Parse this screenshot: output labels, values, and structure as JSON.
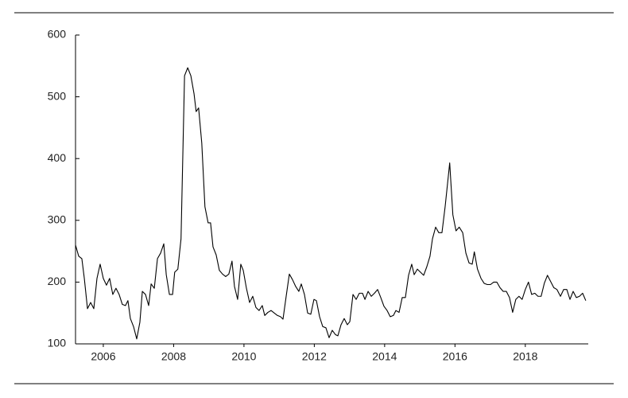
{
  "chart_data": {
    "type": "line",
    "x": [
      2005.21,
      2005.3,
      2005.39,
      2005.46,
      2005.55,
      2005.64,
      2005.73,
      2005.82,
      2005.91,
      2006.0,
      2006.09,
      2006.18,
      2006.27,
      2006.36,
      2006.45,
      2006.54,
      2006.63,
      2006.7,
      2006.77,
      2006.86,
      2006.95,
      2007.04,
      2007.11,
      2007.2,
      2007.29,
      2007.36,
      2007.45,
      2007.54,
      2007.63,
      2007.72,
      2007.79,
      2007.88,
      2007.97,
      2008.03,
      2008.12,
      2008.21,
      2008.31,
      2008.4,
      2008.49,
      2008.58,
      2008.64,
      2008.71,
      2008.8,
      2008.89,
      2008.98,
      2009.05,
      2009.12,
      2009.21,
      2009.3,
      2009.39,
      2009.48,
      2009.57,
      2009.66,
      2009.73,
      2009.82,
      2009.91,
      2009.98,
      2010.07,
      2010.16,
      2010.25,
      2010.34,
      2010.43,
      2010.52,
      2010.59,
      2010.68,
      2010.77,
      2010.86,
      2010.95,
      2011.04,
      2011.11,
      2011.2,
      2011.29,
      2011.38,
      2011.47,
      2011.56,
      2011.63,
      2011.72,
      2011.81,
      2011.9,
      2011.99,
      2012.06,
      2012.15,
      2012.24,
      2012.33,
      2012.42,
      2012.51,
      2012.6,
      2012.67,
      2012.76,
      2012.85,
      2012.94,
      2013.01,
      2013.1,
      2013.19,
      2013.28,
      2013.37,
      2013.44,
      2013.53,
      2013.62,
      2013.71,
      2013.8,
      2013.89,
      2013.98,
      2014.07,
      2014.16,
      2014.25,
      2014.32,
      2014.41,
      2014.5,
      2014.59,
      2014.68,
      2014.77,
      2014.84,
      2014.93,
      2015.02,
      2015.11,
      2015.2,
      2015.29,
      2015.36,
      2015.45,
      2015.54,
      2015.63,
      2015.72,
      2015.81,
      2015.85,
      2015.94,
      2016.03,
      2016.12,
      2016.22,
      2016.31,
      2016.4,
      2016.49,
      2016.55,
      2016.64,
      2016.74,
      2016.83,
      2016.92,
      2017.01,
      2017.1,
      2017.19,
      2017.28,
      2017.37,
      2017.46,
      2017.55,
      2017.64,
      2017.73,
      2017.82,
      2017.91,
      2018.0,
      2018.09,
      2018.18,
      2018.27,
      2018.36,
      2018.45,
      2018.54,
      2018.63,
      2018.72,
      2018.81,
      2018.9,
      2019.0,
      2019.09,
      2019.18,
      2019.27,
      2019.36,
      2019.45,
      2019.54,
      2019.63,
      2019.72
    ],
    "series": [
      {
        "color": "#000000",
        "values": [
          260,
          242,
          238,
          206,
          157,
          167,
          157,
          206,
          229,
          206,
          195,
          206,
          180,
          190,
          180,
          164,
          162,
          170,
          141,
          128,
          108,
          135,
          185,
          180,
          162,
          197,
          190,
          238,
          247,
          262,
          212,
          180,
          180,
          216,
          221,
          270,
          534,
          547,
          534,
          505,
          476,
          482,
          425,
          322,
          296,
          296,
          257,
          244,
          219,
          213,
          209,
          213,
          234,
          193,
          172,
          229,
          219,
          190,
          167,
          177,
          159,
          154,
          162,
          146,
          151,
          154,
          150,
          146,
          144,
          140,
          177,
          213,
          204,
          193,
          185,
          197,
          180,
          150,
          148,
          172,
          170,
          144,
          128,
          126,
          110,
          122,
          115,
          113,
          131,
          141,
          131,
          136,
          180,
          172,
          182,
          182,
          172,
          185,
          177,
          182,
          188,
          175,
          161,
          154,
          144,
          146,
          154,
          151,
          175,
          175,
          211,
          229,
          212,
          221,
          216,
          211,
          225,
          242,
          270,
          289,
          280,
          280,
          322,
          371,
          393,
          309,
          283,
          289,
          280,
          247,
          231,
          229,
          249,
          221,
          206,
          198,
          196,
          196,
          200,
          200,
          191,
          185,
          185,
          175,
          151,
          172,
          177,
          172,
          188,
          200,
          180,
          182,
          177,
          177,
          198,
          211,
          201,
          191,
          188,
          177,
          188,
          188,
          172,
          185,
          175,
          177,
          182,
          170
        ]
      }
    ],
    "xlim": [
      2005.21,
      2019.79
    ],
    "ylim": [
      100,
      600
    ],
    "xticks": [
      2006,
      2008,
      2010,
      2012,
      2014,
      2016,
      2018
    ],
    "yticks": [
      100,
      200,
      300,
      400,
      500,
      600
    ]
  }
}
